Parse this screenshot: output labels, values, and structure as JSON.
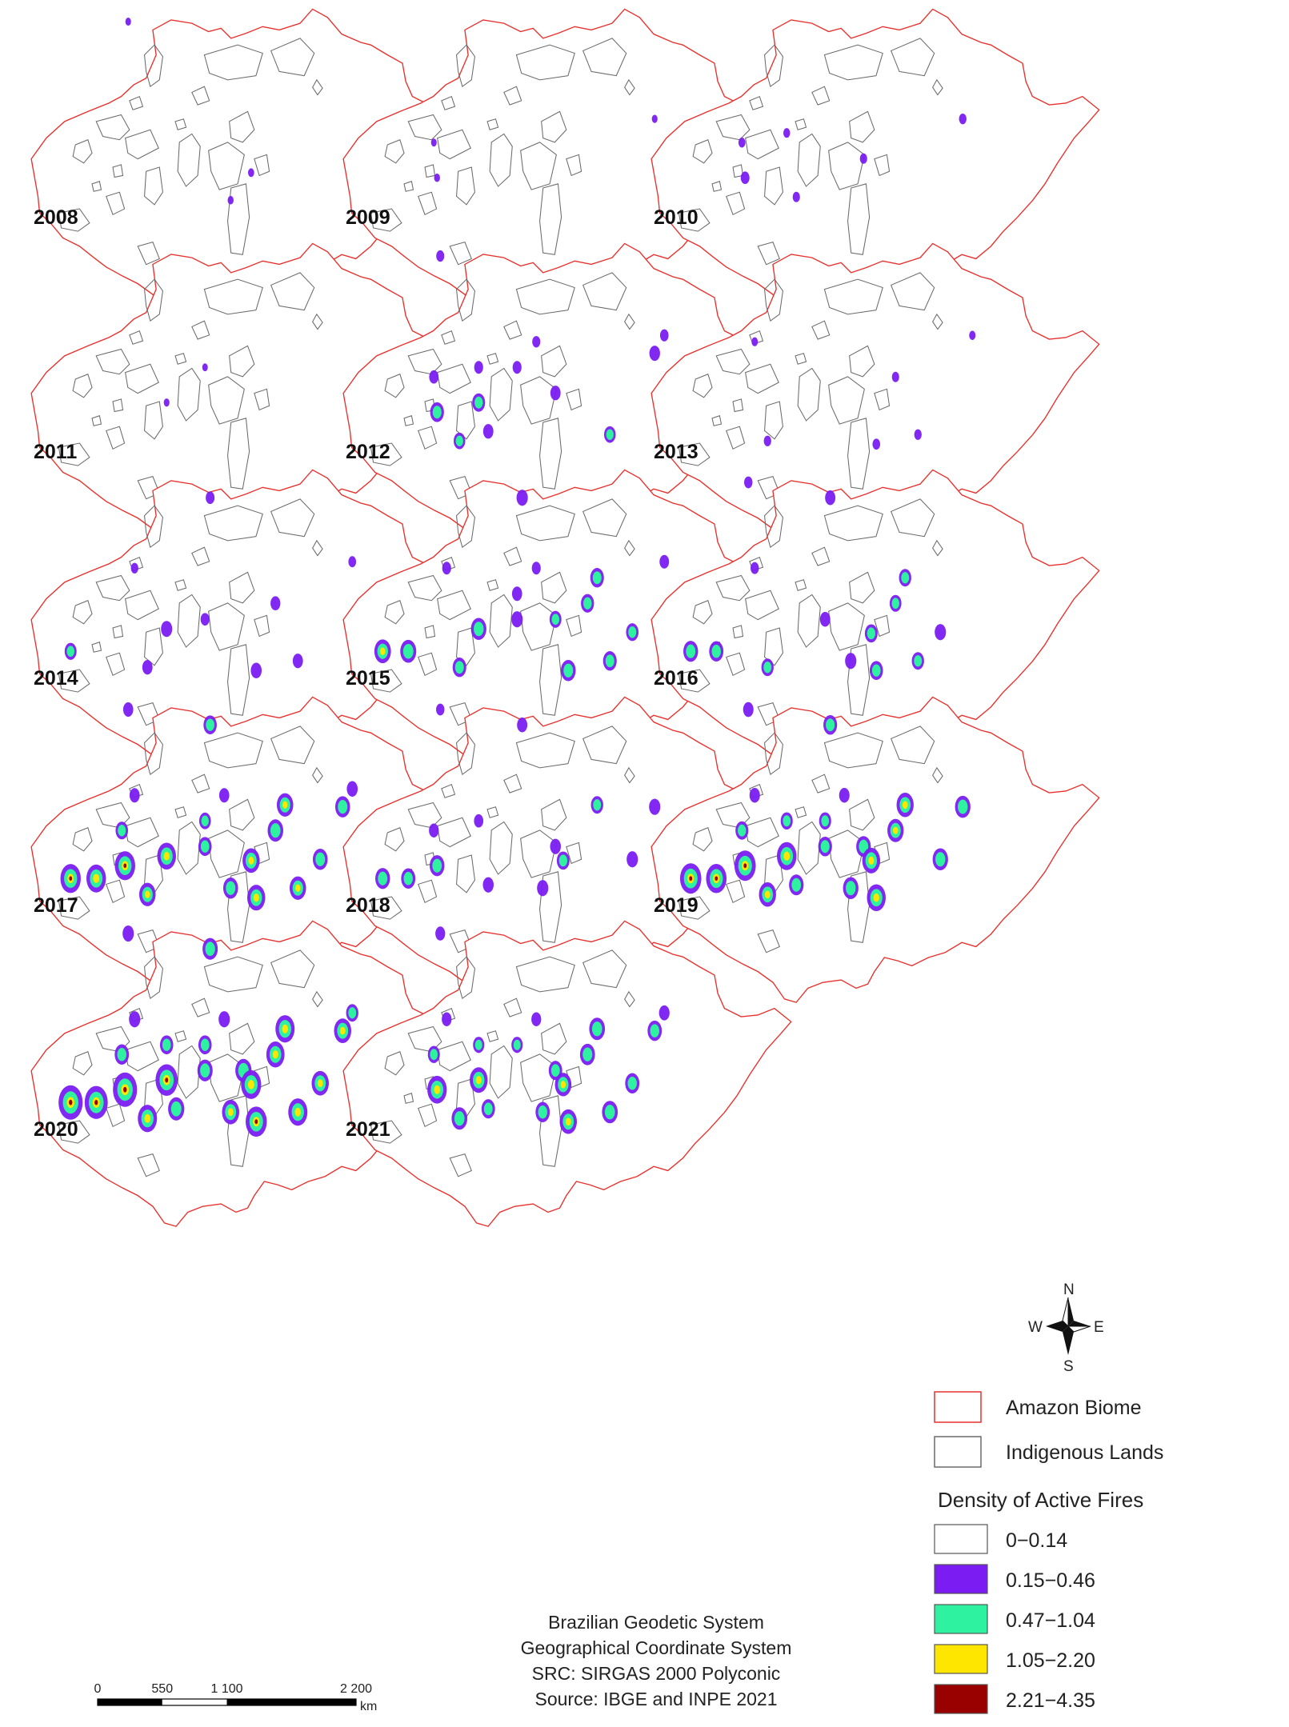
{
  "maps": [
    {
      "year": "2008",
      "intensity": 0.05
    },
    {
      "year": "2009",
      "intensity": 0.03
    },
    {
      "year": "2010",
      "intensity": 0.18
    },
    {
      "year": "2011",
      "intensity": 0.02
    },
    {
      "year": "2012",
      "intensity": 0.45
    },
    {
      "year": "2013",
      "intensity": 0.15
    },
    {
      "year": "2014",
      "intensity": 0.35
    },
    {
      "year": "2015",
      "intensity": 0.6
    },
    {
      "year": "2016",
      "intensity": 0.5
    },
    {
      "year": "2017",
      "intensity": 0.8
    },
    {
      "year": "2018",
      "intensity": 0.5
    },
    {
      "year": "2019",
      "intensity": 0.85
    },
    {
      "year": "2020",
      "intensity": 1.0
    },
    {
      "year": "2021",
      "intensity": 0.75
    }
  ],
  "compass": {
    "n": "N",
    "s": "S",
    "e": "E",
    "w": "W"
  },
  "legend": {
    "boundaries": [
      {
        "label": "Amazon Biome",
        "color": "#e8302c"
      },
      {
        "label": "Indigenous Lands",
        "color": "#6a6a6a"
      }
    ],
    "density_title": "Density of Active Fires",
    "classes": [
      {
        "label": "0−0.14",
        "color": "#ffffff"
      },
      {
        "label": "0.15−0.46",
        "color": "#7a1cf2"
      },
      {
        "label": "0.47−1.04",
        "color": "#2ff2a0"
      },
      {
        "label": "1.05−2.20",
        "color": "#ffe600"
      },
      {
        "label": "2.21−4.35",
        "color": "#990000"
      }
    ]
  },
  "credits": [
    "Brazilian Geodetic System",
    "Geographical Coordinate System",
    "SRC: SIRGAS 2000 Polyconic",
    "Source: IBGE and INPE 2021"
  ],
  "scale_bar": {
    "ticks": [
      "0",
      "550",
      "1 100",
      "2 200"
    ],
    "unit": "km"
  }
}
